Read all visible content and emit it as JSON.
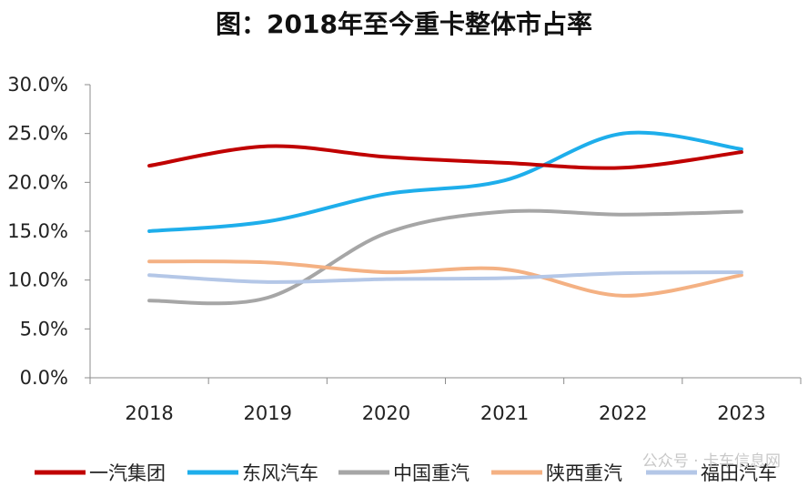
{
  "chart_data": {
    "type": "line",
    "title": "图：2018年至今重卡整体市占率",
    "categories": [
      "2018",
      "2019",
      "2020",
      "2021",
      "2022",
      "2023"
    ],
    "y_ticks": [
      "0.0%",
      "5.0%",
      "10.0%",
      "15.0%",
      "20.0%",
      "25.0%",
      "30.0%"
    ],
    "ylim": [
      0,
      30
    ],
    "y_unit": "%",
    "grid": false,
    "legend_position": "bottom",
    "series": [
      {
        "name": "一汽集团",
        "color": "#C00000",
        "values": [
          21.7,
          23.7,
          22.6,
          22.0,
          21.5,
          23.1
        ]
      },
      {
        "name": "东风汽车",
        "color": "#1EAEEB",
        "values": [
          15.0,
          16.0,
          18.8,
          20.2,
          25.0,
          23.4
        ]
      },
      {
        "name": "中国重汽",
        "color": "#A6A6A6",
        "values": [
          7.9,
          8.2,
          14.8,
          17.0,
          16.7,
          17.0
        ]
      },
      {
        "name": "陕西重汽",
        "color": "#F4B183",
        "values": [
          11.9,
          11.8,
          10.8,
          11.1,
          8.4,
          10.5
        ]
      },
      {
        "name": "福田汽车",
        "color": "#B4C7E7",
        "values": [
          10.5,
          9.8,
          10.1,
          10.2,
          10.7,
          10.8
        ]
      }
    ]
  },
  "watermark": "公众号 · 卡车信息网"
}
